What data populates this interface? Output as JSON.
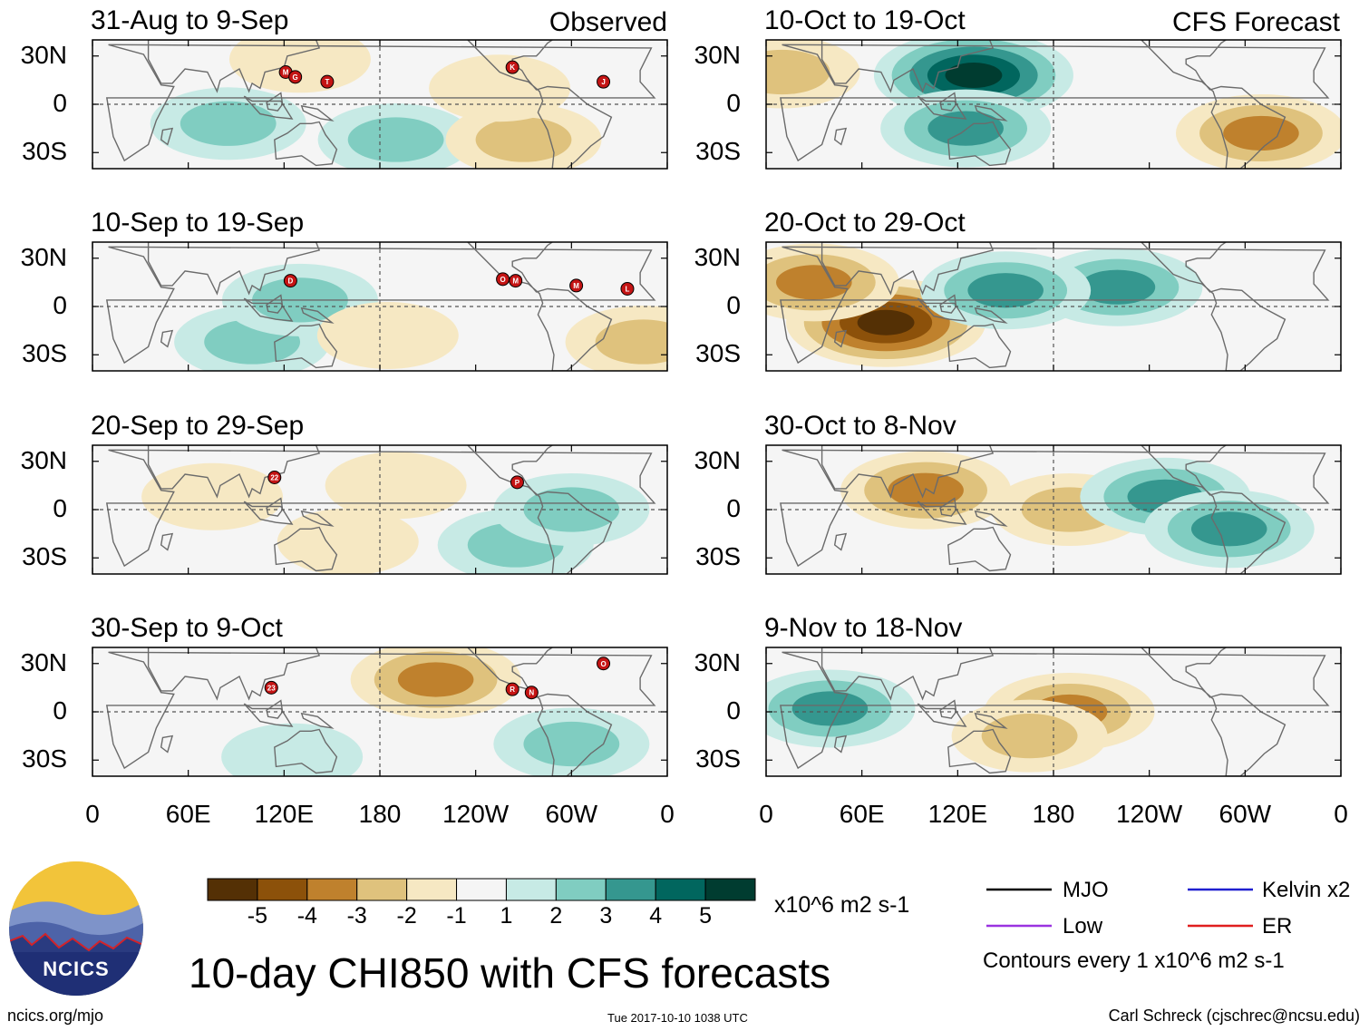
{
  "chart_data": {
    "type": "heatmap",
    "title": "10-day CHI850 with CFS forecasts",
    "variable": "CHI850",
    "units": "x10^6 m2 s-1",
    "contour_interval_text": "Contours every 1 x10^6 m2 s-1",
    "column_headers": {
      "left": "Observed",
      "right": "CFS Forecast"
    },
    "lat_ticks": [
      "30N",
      "0",
      "30S"
    ],
    "lon_ticks": [
      "0",
      "60E",
      "120E",
      "180",
      "120W",
      "60W",
      "0"
    ],
    "colorbar": {
      "labels": [
        "-5",
        "-4",
        "-3",
        "-2",
        "-1",
        "1",
        "2",
        "3",
        "4",
        "5"
      ],
      "colors": [
        "#543005",
        "#8c510a",
        "#bf812d",
        "#dfc27d",
        "#f6e8c3",
        "#f5f5f5",
        "#c7eae5",
        "#80cdc1",
        "#35978f",
        "#01665e",
        "#003c30"
      ]
    },
    "panels": [
      {
        "column": "observed",
        "period": "31-Aug to 9-Sep",
        "storms": [
          {
            "label": "M",
            "lon": 121,
            "lat": 20
          },
          {
            "label": "G",
            "lon": 127,
            "lat": 17
          },
          {
            "label": "T",
            "lon": 147,
            "lat": 14
          },
          {
            "label": "K",
            "lon": -97,
            "lat": 23
          },
          {
            "label": "J",
            "lon": -40,
            "lat": 14
          }
        ],
        "anomalies": [
          {
            "lon": 85,
            "lat": -12,
            "value": 2
          },
          {
            "lon": 130,
            "lat": 28,
            "value": -1
          },
          {
            "lon": 190,
            "lat": -22,
            "value": 2
          },
          {
            "lon": -90,
            "lat": -22,
            "value": -2
          },
          {
            "lon": -105,
            "lat": 10,
            "value": -1
          }
        ]
      },
      {
        "column": "observed",
        "period": "10-Sep to 19-Sep",
        "storms": [
          {
            "label": "D",
            "lon": 124,
            "lat": 16
          },
          {
            "label": "O",
            "lon": -103,
            "lat": 17
          },
          {
            "label": "M",
            "lon": -95,
            "lat": 16
          },
          {
            "label": "M",
            "lon": -57,
            "lat": 13
          },
          {
            "label": "L",
            "lon": -25,
            "lat": 11
          }
        ],
        "anomalies": [
          {
            "lon": 100,
            "lat": -22,
            "value": 2
          },
          {
            "lon": 130,
            "lat": 4,
            "value": 2
          },
          {
            "lon": -175,
            "lat": -18,
            "value": -1
          },
          {
            "lon": -15,
            "lat": -22,
            "value": -2
          }
        ]
      },
      {
        "column": "observed",
        "period": "20-Sep to 29-Sep",
        "storms": [
          {
            "label": "22",
            "lon": 114,
            "lat": 20
          },
          {
            "label": "P",
            "lon": -94,
            "lat": 17
          }
        ],
        "anomalies": [
          {
            "lon": 75,
            "lat": 8,
            "value": -1
          },
          {
            "lon": 160,
            "lat": -20,
            "value": -1
          },
          {
            "lon": -170,
            "lat": 15,
            "value": -1
          },
          {
            "lon": -95,
            "lat": -22,
            "value": 2
          },
          {
            "lon": -60,
            "lat": 0,
            "value": 2
          }
        ]
      },
      {
        "column": "observed",
        "period": "30-Sep to 9-Oct",
        "storms": [
          {
            "label": "23",
            "lon": 112,
            "lat": 15
          },
          {
            "label": "R",
            "lon": -97,
            "lat": 14
          },
          {
            "label": "N",
            "lon": -85,
            "lat": 12
          },
          {
            "label": "O",
            "lon": -40,
            "lat": 30
          }
        ],
        "anomalies": [
          {
            "lon": -145,
            "lat": 20,
            "value": -3
          },
          {
            "lon": 125,
            "lat": -28,
            "value": 1
          },
          {
            "lon": -60,
            "lat": -20,
            "value": 2
          }
        ]
      },
      {
        "column": "forecast",
        "period": "10-Oct to 19-Oct",
        "storms": [],
        "anomalies": [
          {
            "lon": 130,
            "lat": 18,
            "value": 5
          },
          {
            "lon": 125,
            "lat": -15,
            "value": 3
          },
          {
            "lon": -50,
            "lat": -18,
            "value": -3
          },
          {
            "lon": 10,
            "lat": 20,
            "value": -2
          }
        ]
      },
      {
        "column": "forecast",
        "period": "20-Oct to 29-Oct",
        "storms": [],
        "anomalies": [
          {
            "lon": 75,
            "lat": -10,
            "value": -5
          },
          {
            "lon": 30,
            "lat": 15,
            "value": -3
          },
          {
            "lon": -140,
            "lat": 12,
            "value": 3
          },
          {
            "lon": 150,
            "lat": 10,
            "value": 3
          }
        ]
      },
      {
        "column": "forecast",
        "period": "30-Oct to 8-Nov",
        "storms": [],
        "anomalies": [
          {
            "lon": 100,
            "lat": 12,
            "value": -3
          },
          {
            "lon": -170,
            "lat": 0,
            "value": -2
          },
          {
            "lon": -110,
            "lat": 8,
            "value": 3
          },
          {
            "lon": -70,
            "lat": -12,
            "value": 3
          }
        ]
      },
      {
        "column": "forecast",
        "period": "9-Nov to 18-Nov",
        "storms": [],
        "anomalies": [
          {
            "lon": 40,
            "lat": 2,
            "value": 3
          },
          {
            "lon": -170,
            "lat": 0,
            "value": -3
          },
          {
            "lon": 165,
            "lat": -15,
            "value": -2
          }
        ]
      }
    ],
    "legend": [
      {
        "label": "MJO",
        "color": "#000000"
      },
      {
        "label": "Kelvin x2",
        "color": "#1f1fd0"
      },
      {
        "label": "Low",
        "color": "#9a33e0"
      },
      {
        "label": "ER",
        "color": "#e01f1f"
      }
    ]
  },
  "footer": {
    "site": "ncics.org/mjo",
    "timestamp": "Tue 2017-10-10 1038 UTC",
    "credit": "Carl Schreck (cjschrec@ncsu.edu)",
    "logo_text": "NCICS"
  }
}
